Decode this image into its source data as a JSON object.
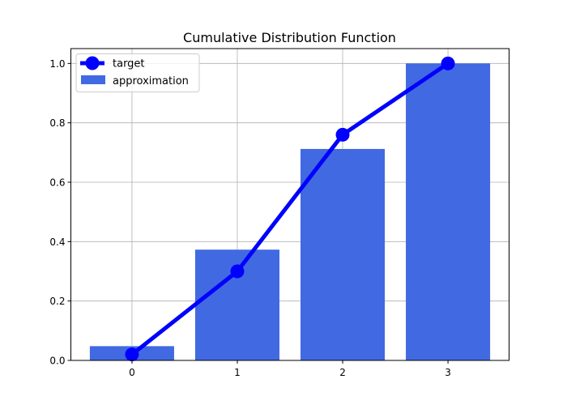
{
  "chart_data": {
    "type": "bar",
    "title": "Cumulative Distribution Function",
    "xlabel": "",
    "ylabel": "",
    "categories": [
      0,
      1,
      2,
      3
    ],
    "xlim": [
      -0.58,
      3.58
    ],
    "ylim": [
      0,
      1.05
    ],
    "x_ticks": [
      "0",
      "1",
      "2",
      "3"
    ],
    "y_ticks": [
      "0.0",
      "0.2",
      "0.4",
      "0.6",
      "0.8",
      "1.0"
    ],
    "grid": true,
    "legend_position": "top-left",
    "series": [
      {
        "name": "target",
        "kind": "line",
        "marker": "circle",
        "color": "#0000ff",
        "x": [
          0,
          1,
          2,
          3
        ],
        "values": [
          0.02,
          0.3,
          0.76,
          1.0
        ]
      },
      {
        "name": "approximation",
        "kind": "bar",
        "color": "#4169e1",
        "x": [
          0,
          1,
          2,
          3
        ],
        "values": [
          0.048,
          0.373,
          0.712,
          1.0
        ]
      }
    ]
  }
}
